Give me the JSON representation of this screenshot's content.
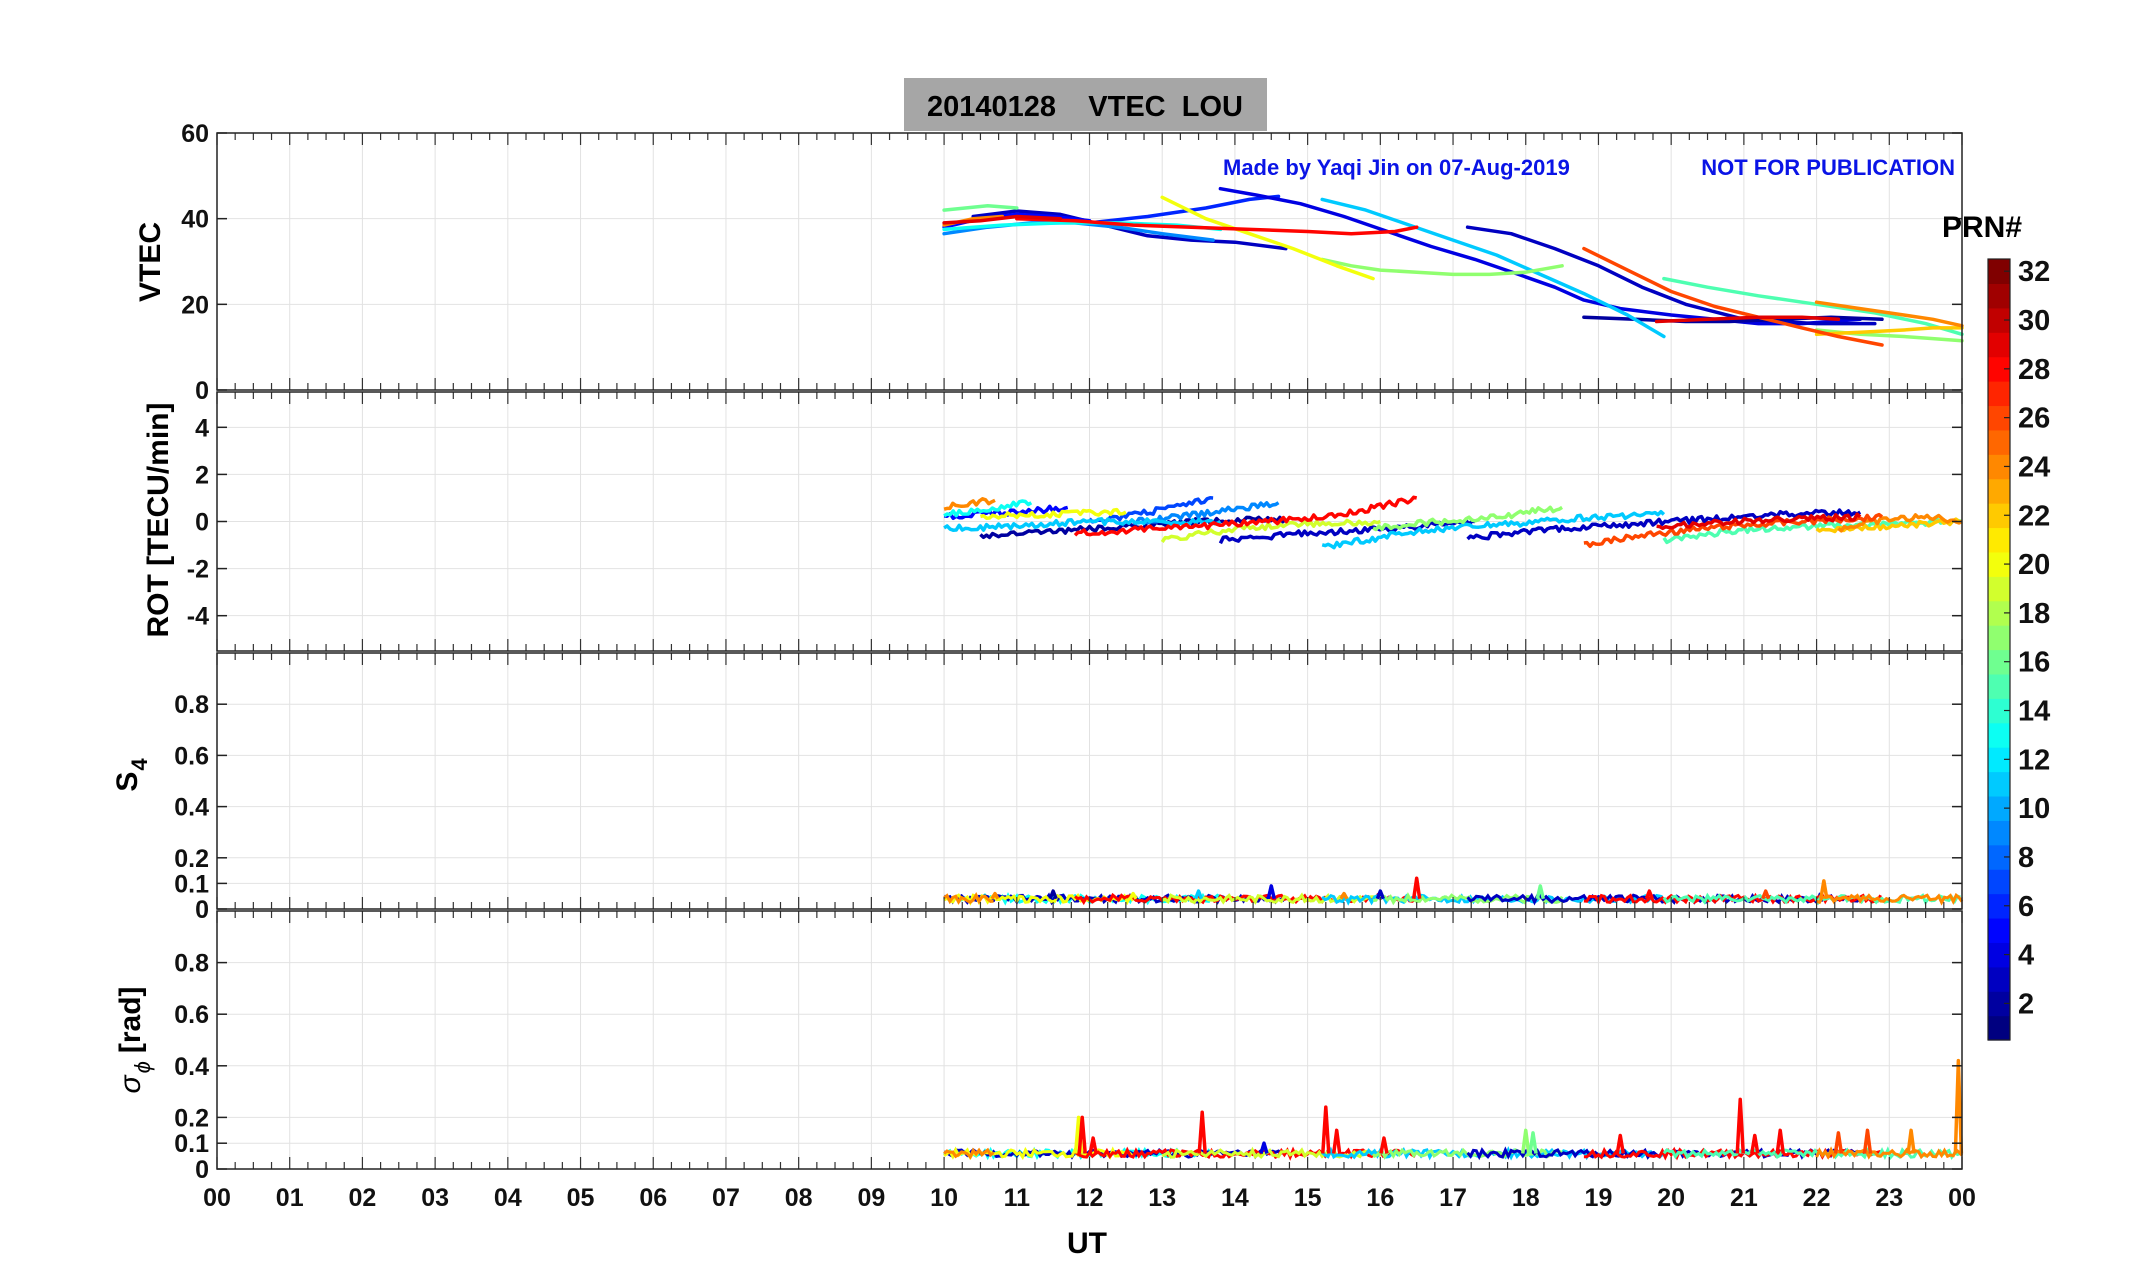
{
  "chart_data": {
    "type": "line",
    "title": "20140128    VTEC  LOU",
    "annotation_left": "Made by Yaqi Jin on 07-Aug-2019",
    "annotation_right": "NOT FOR PUBLICATION",
    "xlabel": "UT",
    "xlim": [
      0,
      24
    ],
    "x_ticks": [
      "00",
      "01",
      "02",
      "03",
      "04",
      "05",
      "06",
      "07",
      "08",
      "09",
      "10",
      "11",
      "12",
      "13",
      "14",
      "15",
      "16",
      "17",
      "18",
      "19",
      "20",
      "21",
      "22",
      "23",
      "00"
    ],
    "colorbar": {
      "label": "PRN#",
      "range": [
        1,
        32
      ],
      "ticks": [
        "32",
        "30",
        "28",
        "26",
        "24",
        "22",
        "20",
        "18",
        "16",
        "14",
        "12",
        "10",
        "8",
        "6",
        "4",
        "2"
      ]
    },
    "panels": [
      {
        "id": "vtec",
        "ylabel": "VTEC",
        "ylim": [
          0,
          60
        ],
        "yticks": [
          "0",
          "20",
          "40",
          "60"
        ],
        "series": [
          {
            "prn": 3,
            "x": [
              10.4,
              11.0,
              11.6,
              12.2,
              12.8,
              13.4,
              14.0,
              14.7
            ],
            "y": [
              40.5,
              41.8,
              41.0,
              38.5,
              36.0,
              35.0,
              34.5,
              33.0
            ]
          },
          {
            "prn": 5,
            "x": [
              10.0,
              10.5,
              11.0,
              11.5,
              12.0
            ],
            "y": [
              38.0,
              40.0,
              41.0,
              40.5,
              39.5
            ]
          },
          {
            "prn": 6,
            "x": [
              12.0,
              12.8,
              13.6,
              14.2,
              14.6
            ],
            "y": [
              39.0,
              40.5,
              42.5,
              44.5,
              45.2
            ]
          },
          {
            "prn": 4,
            "x": [
              13.8,
              14.3,
              14.9,
              15.5,
              16.1,
              16.7,
              17.3,
              17.9,
              18.4,
              18.8,
              19.3,
              20.0,
              20.6,
              21.2,
              21.8,
              22.6
            ],
            "y": [
              47.0,
              45.5,
              43.5,
              40.5,
              37.0,
              33.5,
              30.5,
              27.0,
              24.0,
              21.0,
              19.0,
              17.5,
              16.5,
              15.5,
              15.5,
              16.5
            ]
          },
          {
            "prn": 3,
            "x": [
              17.2,
              17.8,
              18.4,
              19.0,
              19.6,
              20.2,
              21.0,
              22.0,
              22.8
            ],
            "y": [
              38.0,
              36.5,
              33.0,
              29.0,
              24.0,
              20.0,
              16.5,
              15.5,
              15.5
            ]
          },
          {
            "prn": 2,
            "x": [
              18.8,
              19.5,
              20.2,
              20.8,
              21.5,
              22.2,
              22.9
            ],
            "y": [
              17.0,
              16.5,
              16.0,
              16.0,
              16.5,
              17.0,
              16.5
            ]
          },
          {
            "prn": 9,
            "x": [
              10.0,
              10.6,
              11.2,
              11.8,
              12.4,
              13.0,
              13.7
            ],
            "y": [
              36.5,
              38.0,
              39.0,
              39.0,
              38.0,
              36.5,
              35.0
            ]
          },
          {
            "prn": 11,
            "x": [
              15.2,
              15.8,
              16.4,
              17.0,
              17.6,
              18.2,
              18.8,
              19.4,
              19.9
            ],
            "y": [
              44.5,
              42.0,
              38.5,
              35.0,
              31.5,
              27.0,
              22.5,
              17.5,
              12.5
            ]
          },
          {
            "prn": 13,
            "x": [
              10.0,
              10.8,
              11.6,
              12.4,
              13.2,
              13.8
            ],
            "y": [
              37.5,
              38.5,
              39.0,
              39.0,
              38.5,
              37.5
            ]
          },
          {
            "prn": 16,
            "x": [
              10.0,
              10.6,
              11.0
            ],
            "y": [
              42.0,
              43.0,
              42.5
            ]
          },
          {
            "prn": 17,
            "x": [
              15.2,
              15.6,
              16.0,
              16.5,
              17.0,
              17.5,
              18.0,
              18.5
            ],
            "y": [
              30.5,
              29.0,
              28.0,
              27.5,
              27.0,
              27.0,
              27.5,
              29.0
            ]
          },
          {
            "prn": 15,
            "x": [
              19.9,
              20.5,
              21.2,
              22.0,
              22.8,
              23.5,
              24.0
            ],
            "y": [
              26.0,
              24.0,
              22.0,
              20.0,
              18.0,
              15.5,
              13.0
            ]
          },
          {
            "prn": 17,
            "x": [
              22.0,
              22.6,
              23.2,
              23.6,
              24.0
            ],
            "y": [
              14.0,
              13.0,
              12.5,
              12.0,
              11.5
            ]
          },
          {
            "prn": 20,
            "x": [
              13.0,
              13.6,
              14.2,
              14.8,
              15.4,
              15.9
            ],
            "y": [
              45.0,
              40.0,
              36.5,
              33.0,
              29.0,
              26.0
            ]
          },
          {
            "prn": 22,
            "x": [
              22.0,
              22.6,
              23.2,
              23.6,
              24.0
            ],
            "y": [
              13.0,
              13.5,
              14.0,
              14.5,
              14.5
            ]
          },
          {
            "prn": 24,
            "x": [
              10.0,
              10.4,
              10.8
            ],
            "y": [
              38.5,
              40.0,
              40.5
            ]
          },
          {
            "prn": 24,
            "x": [
              22.0,
              22.6,
              23.2,
              23.6,
              24.0
            ],
            "y": [
              20.5,
              19.0,
              17.5,
              16.5,
              15.0
            ]
          },
          {
            "prn": 26,
            "x": [
              18.8,
              19.4,
              20.0,
              20.6,
              21.2,
              21.8,
              22.3,
              22.9
            ],
            "y": [
              33.0,
              28.0,
              23.0,
              19.5,
              17.0,
              14.5,
              12.5,
              10.5
            ]
          },
          {
            "prn": 28,
            "x": [
              11.0,
              11.8,
              12.6,
              13.4,
              14.2,
              15.0,
              15.6,
              16.2,
              16.5
            ],
            "y": [
              40.0,
              39.5,
              38.5,
              38.0,
              37.5,
              37.0,
              36.5,
              37.0,
              38.0
            ]
          },
          {
            "prn": 29,
            "x": [
              10.0,
              10.5,
              11.0,
              11.6
            ],
            "y": [
              39.0,
              39.5,
              40.5,
              40.0
            ]
          },
          {
            "prn": 29,
            "x": [
              19.8,
              20.5,
              21.2,
              21.8,
              22.3
            ],
            "y": [
              16.0,
              16.5,
              17.0,
              17.0,
              16.5
            ]
          }
        ]
      },
      {
        "id": "rot",
        "ylabel": "ROT [TECU/min]",
        "ylim": [
          -5.5,
          5.5
        ],
        "yticks": [
          "-4",
          "-2",
          "0",
          "2",
          "4"
        ],
        "series": [
          {
            "prn": 2,
            "x": [
              10.5,
              11.5,
              12.5,
              13.5,
              14.7
            ],
            "y": [
              -0.6,
              -0.4,
              -0.2,
              0.0,
              0.1
            ]
          },
          {
            "prn": 3,
            "x": [
              13.8,
              15.0,
              16.2,
              17.3
            ],
            "y": [
              -0.8,
              -0.5,
              -0.3,
              0.0
            ]
          },
          {
            "prn": 3,
            "x": [
              17.2,
              18.5,
              20.0,
              21.5,
              22.6
            ],
            "y": [
              -0.7,
              -0.3,
              0.0,
              0.3,
              0.4
            ]
          },
          {
            "prn": 5,
            "x": [
              10.0,
              11.0,
              11.7
            ],
            "y": [
              0.2,
              0.4,
              0.6
            ]
          },
          {
            "prn": 7,
            "x": [
              12.0,
              13.0,
              13.7
            ],
            "y": [
              0.0,
              0.5,
              1.0
            ]
          },
          {
            "prn": 9,
            "x": [
              12.6,
              13.5,
              14.6
            ],
            "y": [
              0.0,
              0.3,
              0.8
            ]
          },
          {
            "prn": 11,
            "x": [
              10.0,
              11.0,
              12.0,
              13.0,
              13.8
            ],
            "y": [
              -0.3,
              -0.2,
              0.0,
              0.0,
              0.0
            ]
          },
          {
            "prn": 11,
            "x": [
              15.2,
              16.5,
              17.8,
              19.0,
              19.9
            ],
            "y": [
              -1.1,
              -0.4,
              -0.1,
              0.2,
              0.3
            ]
          },
          {
            "prn": 13,
            "x": [
              10.0,
              10.5,
              11.2
            ],
            "y": [
              0.3,
              0.5,
              0.8
            ]
          },
          {
            "prn": 17,
            "x": [
              15.9,
              16.8,
              17.6,
              18.5
            ],
            "y": [
              -0.3,
              0.0,
              0.2,
              0.6
            ]
          },
          {
            "prn": 15,
            "x": [
              19.9,
              20.8,
              21.8,
              23.0,
              24.0
            ],
            "y": [
              -0.8,
              -0.4,
              -0.2,
              -0.1,
              0.0
            ]
          },
          {
            "prn": 19,
            "x": [
              13.0,
              14.0,
              15.0,
              16.0
            ],
            "y": [
              -0.8,
              -0.3,
              -0.1,
              0.0
            ]
          },
          {
            "prn": 20,
            "x": [
              10.5,
              11.5,
              12.5
            ],
            "y": [
              0.2,
              0.3,
              0.4
            ]
          },
          {
            "prn": 22,
            "x": [
              22.0,
              23.0,
              24.0
            ],
            "y": [
              -0.4,
              -0.2,
              0.0
            ]
          },
          {
            "prn": 24,
            "x": [
              10.0,
              10.4,
              10.7
            ],
            "y": [
              0.6,
              0.8,
              0.9
            ]
          },
          {
            "prn": 24,
            "x": [
              22.3,
              23.0,
              23.6,
              24.0
            ],
            "y": [
              -0.3,
              0.1,
              0.2,
              0.0
            ]
          },
          {
            "prn": 26,
            "x": [
              18.8,
              19.8,
              20.8,
              21.8,
              22.9
            ],
            "y": [
              -1.0,
              -0.5,
              -0.2,
              0.0,
              0.2
            ]
          },
          {
            "prn": 28,
            "x": [
              11.8,
              13.0,
              14.5,
              15.5,
              16.5
            ],
            "y": [
              -0.5,
              -0.3,
              0.0,
              0.3,
              1.0
            ]
          },
          {
            "prn": 29,
            "x": [
              19.8,
              20.8,
              21.8,
              22.6
            ],
            "y": [
              -0.2,
              0.0,
              0.1,
              0.2
            ]
          }
        ]
      },
      {
        "id": "s4",
        "ylabel": "S4",
        "ylim": [
          0,
          1
        ],
        "yticks": [
          "0",
          "0.1",
          "0.2",
          "0.4",
          "0.6",
          "0.8"
        ],
        "baseline": 0.04,
        "spikes": [
          {
            "x": 10.7,
            "y": 0.06,
            "prn": 24
          },
          {
            "x": 11.5,
            "y": 0.07,
            "prn": 2
          },
          {
            "x": 12.6,
            "y": 0.06,
            "prn": 20
          },
          {
            "x": 13.5,
            "y": 0.07,
            "prn": 11
          },
          {
            "x": 14.5,
            "y": 0.09,
            "prn": 4
          },
          {
            "x": 15.5,
            "y": 0.06,
            "prn": 24
          },
          {
            "x": 16.0,
            "y": 0.07,
            "prn": 3
          },
          {
            "x": 16.5,
            "y": 0.12,
            "prn": 28
          },
          {
            "x": 18.2,
            "y": 0.09,
            "prn": 16
          },
          {
            "x": 19.7,
            "y": 0.07,
            "prn": 28
          },
          {
            "x": 21.3,
            "y": 0.07,
            "prn": 26
          },
          {
            "x": 22.1,
            "y": 0.11,
            "prn": 24
          }
        ]
      },
      {
        "id": "sigma",
        "ylabel": "σ ϕ [rad]",
        "ylim": [
          0,
          1
        ],
        "yticks": [
          "0",
          "0.1",
          "0.2",
          "0.4",
          "0.6",
          "0.8"
        ],
        "baseline": 0.06,
        "spikes": [
          {
            "x": 11.85,
            "y": 0.2,
            "prn": 20
          },
          {
            "x": 11.9,
            "y": 0.2,
            "prn": 28
          },
          {
            "x": 12.05,
            "y": 0.12,
            "prn": 28
          },
          {
            "x": 13.55,
            "y": 0.22,
            "prn": 28
          },
          {
            "x": 14.4,
            "y": 0.1,
            "prn": 4
          },
          {
            "x": 15.25,
            "y": 0.24,
            "prn": 28
          },
          {
            "x": 15.4,
            "y": 0.15,
            "prn": 28
          },
          {
            "x": 16.05,
            "y": 0.12,
            "prn": 28
          },
          {
            "x": 18.0,
            "y": 0.15,
            "prn": 17
          },
          {
            "x": 18.1,
            "y": 0.14,
            "prn": 16
          },
          {
            "x": 19.3,
            "y": 0.13,
            "prn": 28
          },
          {
            "x": 20.95,
            "y": 0.27,
            "prn": 28
          },
          {
            "x": 21.15,
            "y": 0.13,
            "prn": 28
          },
          {
            "x": 21.5,
            "y": 0.15,
            "prn": 28
          },
          {
            "x": 22.3,
            "y": 0.14,
            "prn": 26
          },
          {
            "x": 22.7,
            "y": 0.15,
            "prn": 26
          },
          {
            "x": 23.3,
            "y": 0.15,
            "prn": 24
          },
          {
            "x": 23.95,
            "y": 0.42,
            "prn": 24
          }
        ]
      }
    ]
  }
}
